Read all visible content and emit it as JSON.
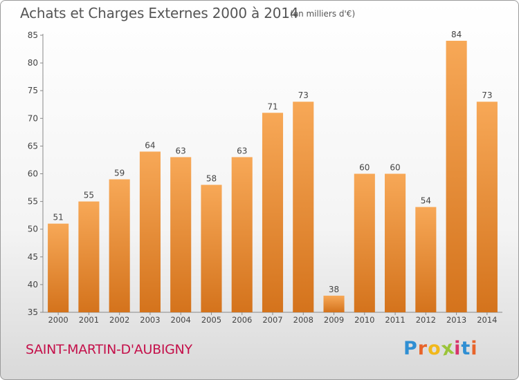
{
  "header": {
    "title": "Achats et Charges Externes 2000 à 2014",
    "subtitle": "(en milliers d'€)"
  },
  "footer": {
    "commune": "SAINT-MARTIN-D'AUBIGNY",
    "logo_text": "Proxiti",
    "logo_colors": [
      "#2f8fd3",
      "#e8642a",
      "#f1b81c",
      "#9bc43a",
      "#d7336b",
      "#2f8fd3",
      "#e8642a"
    ]
  },
  "chart_data": {
    "type": "bar",
    "title": "Achats et Charges Externes 2000 à 2014",
    "subtitle": "(en milliers d'€)",
    "xlabel": "",
    "ylabel": "",
    "categories": [
      "2000",
      "2001",
      "2002",
      "2003",
      "2004",
      "2005",
      "2006",
      "2007",
      "2008",
      "2009",
      "2010",
      "2011",
      "2012",
      "2013",
      "2014"
    ],
    "values": [
      51,
      55,
      59,
      64,
      63,
      58,
      63,
      71,
      73,
      38,
      60,
      60,
      54,
      84,
      73
    ],
    "ylim": [
      35,
      85
    ],
    "yticks": [
      35,
      40,
      45,
      50,
      55,
      60,
      65,
      70,
      75,
      80,
      85
    ],
    "grid": false,
    "legend": "none",
    "bar_color_top": "#f7a857",
    "bar_color_bottom": "#d4731c"
  }
}
